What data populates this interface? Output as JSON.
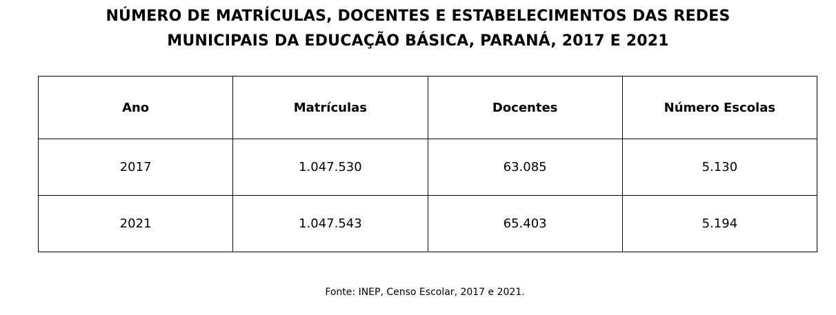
{
  "title": {
    "line1": "NÚMERO DE MATRÍCULAS, DOCENTES E ESTABELECIMENTOS DAS REDES",
    "line2": "MUNICIPAIS DA EDUCAÇÃO BÁSICA, PARANÁ, 2017 E 2021"
  },
  "table": {
    "headers": [
      "Ano",
      "Matrículas",
      "Docentes",
      "Número Escolas"
    ],
    "rows": [
      [
        "2017",
        "1.047.530",
        "63.085",
        "5.130"
      ],
      [
        "2021",
        "1.047.543",
        "65.403",
        "5.194"
      ]
    ]
  },
  "source": "Fonte: INEP, Censo Escolar, 2017 e 2021."
}
